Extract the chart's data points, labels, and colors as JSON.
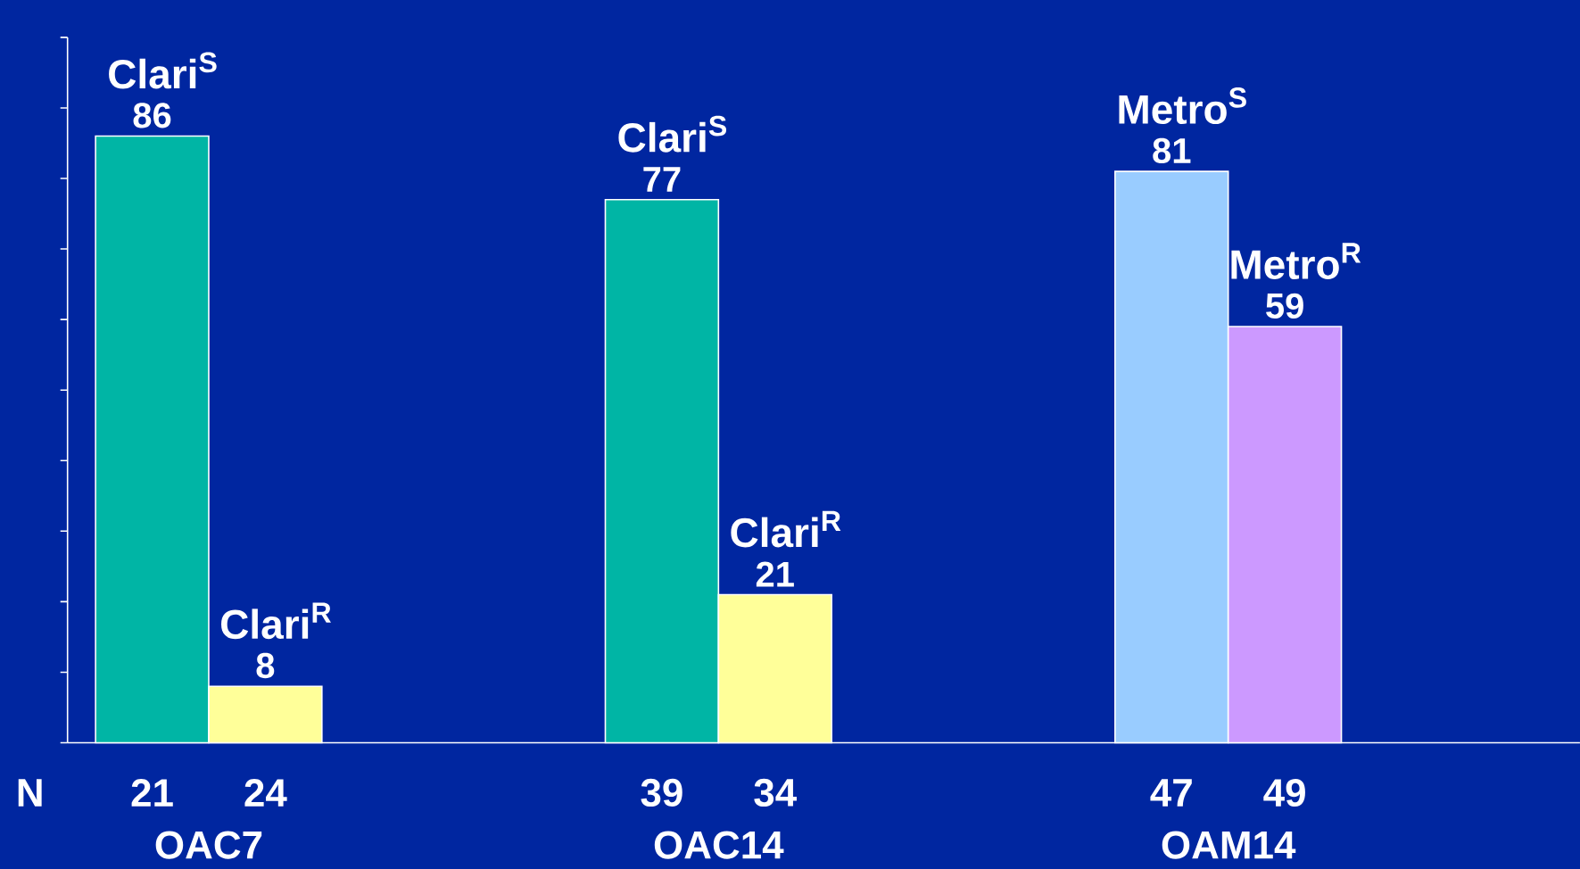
{
  "chart_data": {
    "type": "bar",
    "categories": [
      "OAC7",
      "OAC14",
      "OAM14"
    ],
    "series": [
      {
        "name": "Clari$^{S}$",
        "color": "#00b5a5",
        "values": [
          86,
          77,
          null
        ]
      },
      {
        "name": "Clari$^{R}$",
        "color": "#ffff99",
        "values": [
          8,
          21,
          null
        ]
      },
      {
        "name": "Metro$^{S}$",
        "color": "#99ccff",
        "values": [
          null,
          null,
          81
        ]
      },
      {
        "name": "Metro$^{R}$",
        "color": "#cc99ff",
        "values": [
          null,
          null,
          59
        ]
      }
    ],
    "ylim": [
      0,
      100
    ],
    "yticks": [
      {
        "value": 0,
        "label": null
      },
      {
        "value": 10,
        "label": null
      },
      {
        "value": 20,
        "label": null
      },
      {
        "value": 30,
        "label": null
      },
      {
        "value": 40,
        "label": null
      },
      {
        "value": 50,
        "label": null
      },
      {
        "value": 60,
        "label": null
      },
      {
        "value": 70,
        "label": null
      },
      {
        "value": 80,
        "label": null
      },
      {
        "value": 90,
        "label": null
      },
      {
        "value": 100,
        "label": null
      }
    ],
    "tick_labels": "x",
    "data_labels": true,
    "annotations": [
      "N",
      "21",
      "24",
      "39",
      "34",
      "47",
      "49"
    ]
  }
}
